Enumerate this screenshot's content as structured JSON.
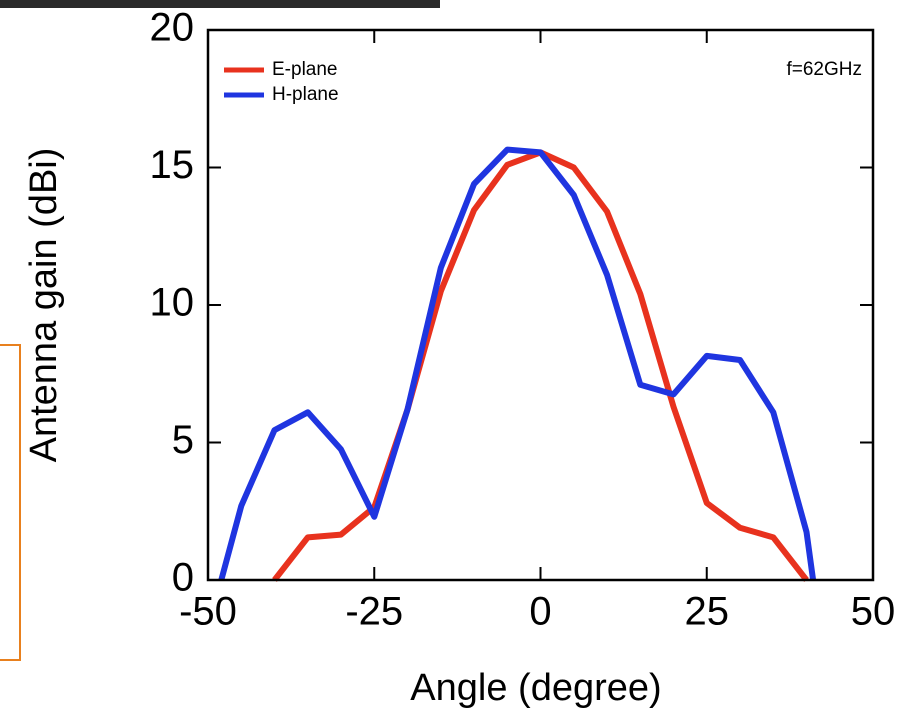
{
  "chart_data": {
    "type": "line",
    "xlabel": "Angle (degree)",
    "ylabel": "Antenna gain (dBi)",
    "annotation": "f=62GHz",
    "xlim": [
      -50,
      50
    ],
    "xticks": [
      -50,
      -25,
      0,
      25,
      50
    ],
    "ylim": [
      0,
      20
    ],
    "yticks": [
      0,
      5,
      10,
      15,
      20
    ],
    "legend": "upper left",
    "series": [
      {
        "name": "E-plane",
        "color": "#e8321e",
        "x": [
          -40,
          -35,
          -30,
          -25,
          -20,
          -15,
          -10,
          -5,
          0,
          5,
          10,
          15,
          20,
          25,
          30,
          35,
          40
        ],
        "values": [
          0,
          1.55,
          1.65,
          2.65,
          6.2,
          10.5,
          13.45,
          15.1,
          15.55,
          15.0,
          13.4,
          10.4,
          6.3,
          2.8,
          1.9,
          1.55,
          0
        ]
      },
      {
        "name": "H-plane",
        "color": "#1f35e0",
        "x": [
          -48,
          -45,
          -40,
          -35,
          -30,
          -25,
          -20,
          -15,
          -10,
          -5,
          0,
          5,
          10,
          15,
          20,
          25,
          30,
          35,
          40,
          41
        ],
        "values": [
          0,
          2.7,
          5.45,
          6.1,
          4.75,
          2.3,
          6.2,
          11.35,
          14.4,
          15.65,
          15.55,
          14.0,
          11.1,
          7.1,
          6.75,
          8.15,
          8.0,
          6.1,
          1.75,
          0
        ]
      }
    ]
  }
}
